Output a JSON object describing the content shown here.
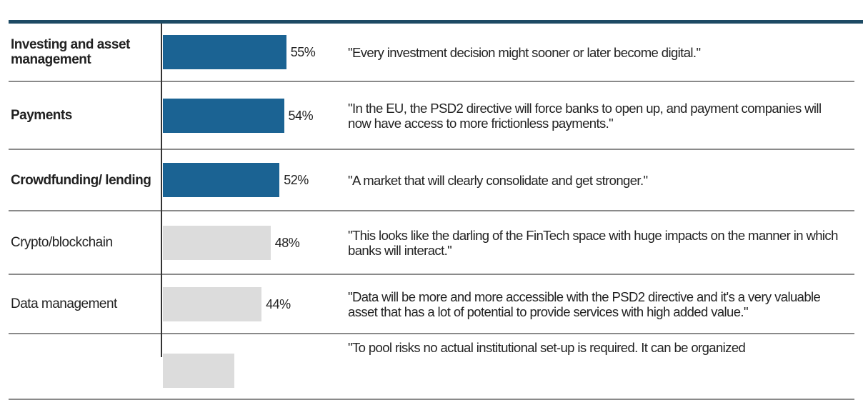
{
  "chart_data": {
    "type": "bar",
    "orientation": "horizontal",
    "categories": [
      "Investing and asset management",
      "Payments",
      "Crowdfunding/ lending",
      "Crypto/blockchain",
      "Data management",
      ""
    ],
    "values": [
      55,
      54,
      52,
      48,
      44,
      null
    ],
    "value_labels": [
      "55%",
      "54%",
      "52%",
      "48%",
      "44%",
      ""
    ],
    "highlighted": [
      true,
      true,
      true,
      false,
      false,
      false
    ],
    "quotes": [
      "\"Every investment decision might sooner or later become digital.\"",
      "\"In the EU, the PSD2 directive will force banks to open up, and payment companies will now have access to more frictionless payments.\"",
      "\"A market that will clearly consolidate and get stronger.\"",
      "\"This looks like the darling of the FinTech space with huge impacts on the manner in which banks will interact.\"",
      "\"Data will be more and more accessible with the PSD2 directive and it's a very valuable asset that has a lot of potential to provide services with high added value.\"",
      "\"To pool risks no actual institutional set-up is required. It can be organized"
    ],
    "colors": {
      "highlight": "#1b6393",
      "muted": "#dcdcdc",
      "rule": "#1d4a64"
    }
  }
}
